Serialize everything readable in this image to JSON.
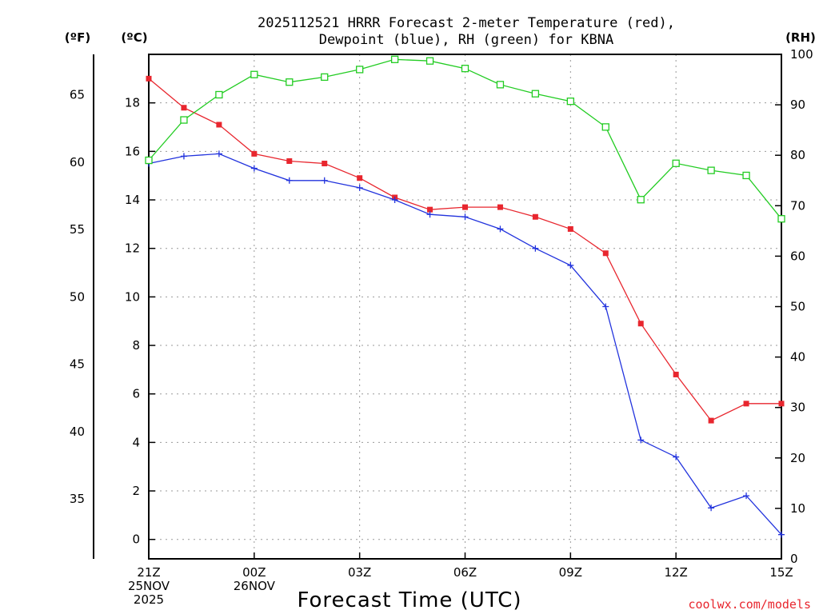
{
  "title_line1": "2025112521 HRRR Forecast 2-meter Temperature (red),",
  "title_line2": "Dewpoint (blue), RH (green) for KBNA",
  "unit_f": "(ºF)",
  "unit_c": "(ºC)",
  "unit_rh": "(RH)",
  "xaxis_title": "Forecast Time (UTC)",
  "credit": "coolwx.com/models",
  "colors": {
    "temperature": "#e8262e",
    "dewpoint": "#2233dd",
    "rh": "#22cc22",
    "grid": "#999999"
  },
  "chart_data": {
    "type": "line",
    "title": "2025112521 HRRR Forecast 2-meter Temperature (red), Dewpoint (blue), RH (green) for KBNA",
    "xlabel": "Forecast Time (UTC)",
    "x_hours": [
      0,
      1,
      2,
      3,
      4,
      5,
      6,
      7,
      8,
      9,
      10,
      11,
      12,
      13,
      14,
      15,
      16,
      17,
      18
    ],
    "xlim": [
      0,
      18
    ],
    "x_ticks": [
      {
        "hour": 0,
        "lines": [
          "21Z",
          "25NOV",
          "2025"
        ]
      },
      {
        "hour": 3,
        "lines": [
          "00Z",
          "26NOV"
        ]
      },
      {
        "hour": 6,
        "lines": [
          "03Z"
        ]
      },
      {
        "hour": 9,
        "lines": [
          "06Z"
        ]
      },
      {
        "hour": 12,
        "lines": [
          "09Z"
        ]
      },
      {
        "hour": 15,
        "lines": [
          "12Z"
        ]
      },
      {
        "hour": 18,
        "lines": [
          "15Z"
        ]
      }
    ],
    "celsius_axis": {
      "label": "(ºC)",
      "range": [
        -0.8,
        20
      ],
      "ticks": [
        0,
        2,
        4,
        6,
        8,
        10,
        12,
        14,
        16,
        18
      ]
    },
    "fahrenheit_axis": {
      "label": "(ºF)",
      "ticks": [
        35,
        40,
        45,
        50,
        55,
        60,
        65
      ]
    },
    "rh_axis": {
      "label": "(RH)",
      "range": [
        0,
        100
      ],
      "ticks": [
        0,
        10,
        20,
        30,
        40,
        50,
        60,
        70,
        80,
        90,
        100
      ]
    },
    "series": [
      {
        "name": "Temperature",
        "unit": "C",
        "color": "red",
        "marker": "filled-square",
        "values": [
          19.0,
          17.8,
          17.1,
          15.9,
          15.6,
          15.5,
          14.9,
          14.1,
          13.6,
          13.7,
          13.7,
          13.3,
          12.8,
          11.8,
          8.9,
          6.8,
          4.9,
          5.6,
          5.6
        ]
      },
      {
        "name": "Dewpoint",
        "unit": "C",
        "color": "blue",
        "marker": "plus",
        "values": [
          15.5,
          15.8,
          15.9,
          15.3,
          14.8,
          14.8,
          14.5,
          14.0,
          13.4,
          13.3,
          12.8,
          12.0,
          11.3,
          9.6,
          4.1,
          3.4,
          1.3,
          1.8,
          0.2
        ]
      },
      {
        "name": "RH",
        "unit": "%",
        "color": "green",
        "marker": "open-square",
        "values": [
          79,
          87,
          92,
          96,
          94.5,
          95.5,
          97,
          99,
          98.7,
          97.2,
          94,
          92.2,
          90.7,
          85.6,
          71.2,
          78.4,
          77,
          76,
          67.4
        ]
      }
    ]
  }
}
